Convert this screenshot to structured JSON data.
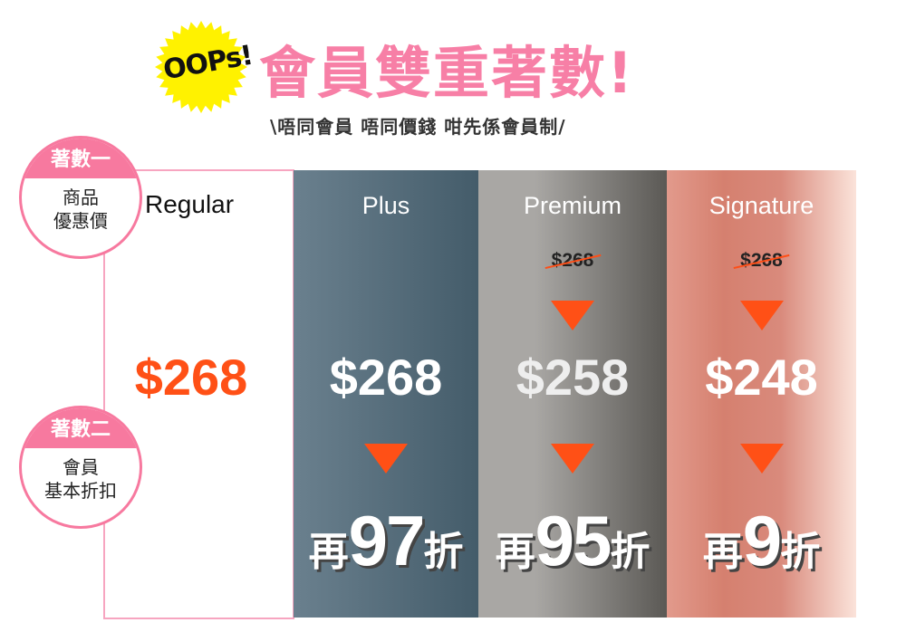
{
  "header": {
    "badge": "OOPs!",
    "title": "會員雙重著數!",
    "subtitle": "\\唔同會員 唔同價錢 咁先係會員制/"
  },
  "colors": {
    "pink": "#f77fa6",
    "orange": "#ff5016",
    "yellow": "#fff200"
  },
  "steps": [
    {
      "label": "著數一",
      "line1": "商品",
      "line2": "優惠價"
    },
    {
      "label": "著數二",
      "line1": "會員",
      "line2": "基本折扣"
    }
  ],
  "tiers": [
    {
      "name": "Regular",
      "price": "$268"
    },
    {
      "name": "Plus",
      "price": "$268",
      "disc_pre": "再",
      "disc_num": "97",
      "disc_post": "折"
    },
    {
      "name": "Premium",
      "old_price": "$268",
      "price": "$258",
      "disc_pre": "再",
      "disc_num": "95",
      "disc_post": "折"
    },
    {
      "name": "Signature",
      "old_price": "$268",
      "price": "$248",
      "disc_pre": "再",
      "disc_num": "9",
      "disc_post": "折"
    }
  ]
}
